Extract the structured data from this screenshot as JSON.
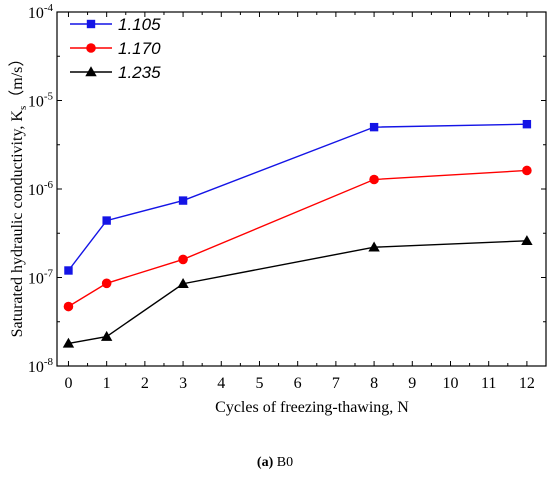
{
  "chart_data": {
    "type": "line",
    "xlabel": "Cycles of freezing-thawing, N",
    "ylabel_main": "Saturated hydraulic conductivity, K",
    "ylabel_sub": "s",
    "ylabel_unit": "（m/s）",
    "x": [
      0,
      1,
      3,
      8,
      12
    ],
    "xlim": [
      -0.3,
      12.5
    ],
    "x_ticks": [
      0,
      1,
      2,
      3,
      4,
      5,
      6,
      7,
      8,
      9,
      10,
      11,
      12
    ],
    "x_tick_labels": [
      "0",
      "1",
      "2",
      "3",
      "4",
      "5",
      "6",
      "7",
      "8",
      "9",
      "10",
      "11",
      "12"
    ],
    "y_scale": "log",
    "ylim": [
      1e-08,
      0.0001
    ],
    "y_ticks": [
      1e-08,
      1e-07,
      1e-06,
      1e-05,
      0.0001
    ],
    "y_tick_labels": [
      {
        "base": "10",
        "exp": "-8"
      },
      {
        "base": "10",
        "exp": "-7"
      },
      {
        "base": "10",
        "exp": "-6"
      },
      {
        "base": "10",
        "exp": "-5"
      },
      {
        "base": "10",
        "exp": "-4"
      }
    ],
    "grid": false,
    "legend_position": "top-left",
    "series": [
      {
        "name": "1.105",
        "color": "#1414e6",
        "marker": "square",
        "values": [
          1.2e-07,
          4.4e-07,
          7.4e-07,
          5e-06,
          5.4e-06
        ]
      },
      {
        "name": "1.170",
        "color": "#ff0000",
        "marker": "circle",
        "values": [
          4.7e-08,
          8.6e-08,
          1.6e-07,
          1.28e-06,
          1.62e-06
        ]
      },
      {
        "name": "1.235",
        "color": "#000000",
        "marker": "triangle",
        "values": [
          1.8e-08,
          2.15e-08,
          8.5e-08,
          2.2e-07,
          2.6e-07
        ]
      }
    ]
  },
  "caption": {
    "label": "(a)",
    "text": " B0"
  }
}
